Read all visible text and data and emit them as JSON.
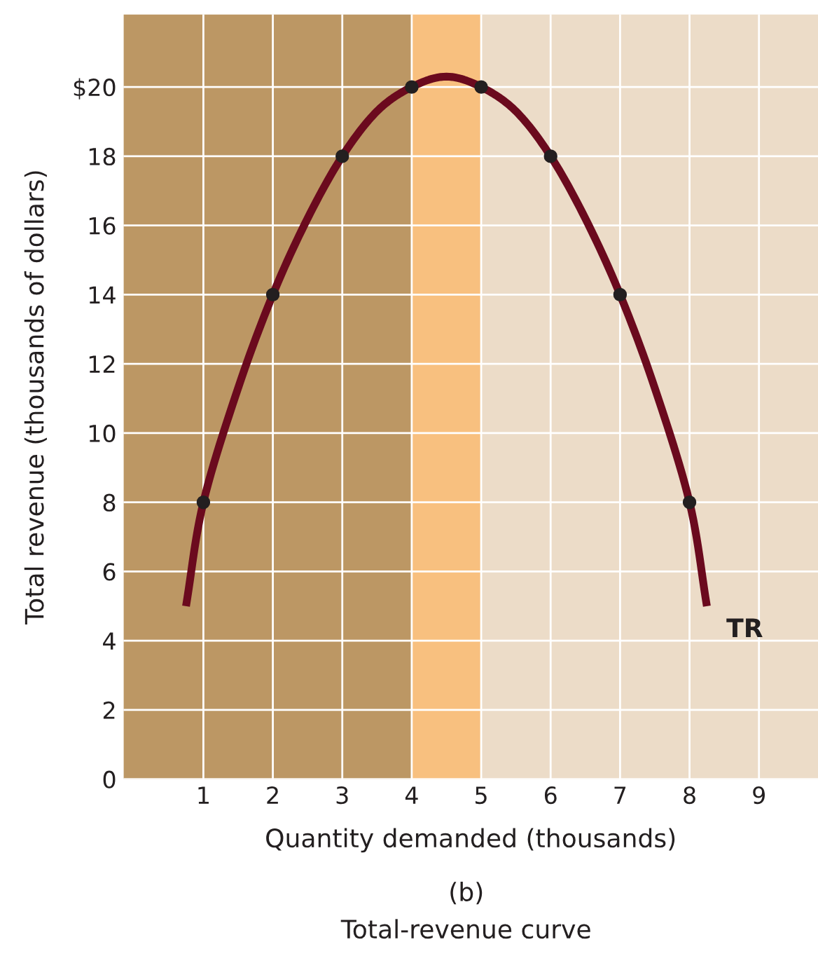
{
  "chart_data": {
    "type": "line",
    "xlabel": "Quantity demanded (thousands)",
    "ylabel": "Total revenue (thousands of dollars)",
    "xlim": [
      -0.15,
      9.85
    ],
    "ylim": [
      0,
      22.1
    ],
    "xticks": [
      1,
      2,
      3,
      4,
      5,
      6,
      7,
      8,
      9
    ],
    "yticks": [
      {
        "value": 0,
        "label": "0"
      },
      2,
      4,
      6,
      8,
      10,
      12,
      14,
      16,
      18,
      {
        "value": 20,
        "label": "$20"
      }
    ],
    "grid": true,
    "legend": false,
    "bands": [
      {
        "axis": "x",
        "from": -0.15,
        "to": 4,
        "color": "#bc9764"
      },
      {
        "axis": "x",
        "from": 4,
        "to": 5,
        "color": "#f8c07f"
      },
      {
        "axis": "x",
        "from": 5,
        "to": 9.85,
        "color": "#ecdcc8"
      }
    ],
    "series": [
      {
        "name": "TR",
        "color": "#6b0a1e",
        "marker": "none",
        "x": [
          0.75,
          1,
          1.5,
          2,
          2.5,
          3,
          3.5,
          4,
          4.5,
          5,
          5.5,
          6,
          6.5,
          7,
          7.5,
          8,
          8.25
        ],
        "values": [
          5,
          8,
          11.3,
          14,
          16.2,
          18,
          19.3,
          20,
          20.3,
          20,
          19.3,
          18,
          16.2,
          14,
          11.3,
          8,
          5
        ]
      },
      {
        "type": "scatter",
        "color": "#231f20",
        "marker": "circle",
        "x": [
          1,
          2,
          3,
          4,
          5,
          6,
          7,
          8
        ],
        "values": [
          8,
          14,
          18,
          20,
          20,
          18,
          14,
          8
        ]
      }
    ],
    "annotations": [
      "(b)",
      "Total-revenue curve"
    ]
  }
}
